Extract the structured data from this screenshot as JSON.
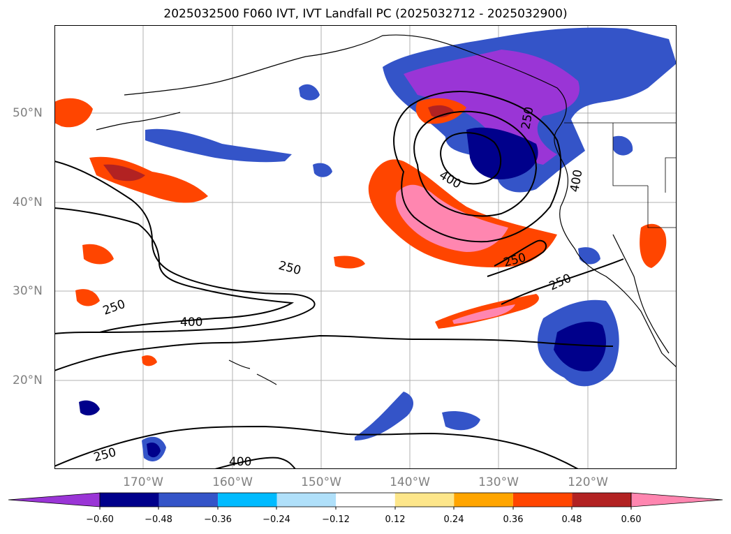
{
  "title": "2025032500 F060 IVT, IVT Landfall PC (2025032712 - 2025032900)",
  "map": {
    "latitude_labels": [
      "50°N",
      "40°N",
      "30°N",
      "20°N"
    ],
    "longitude_labels": [
      "170°W",
      "160°W",
      "150°W",
      "140°W",
      "130°W",
      "120°W"
    ],
    "extent": {
      "lon_min": -180,
      "lon_max": -110,
      "lat_min": 10,
      "lat_max": 60
    },
    "gridlines": true,
    "contour_labels": [
      "250",
      "400",
      "250",
      "400",
      "250",
      "400",
      "250",
      "250",
      "250",
      "400",
      "250"
    ]
  },
  "colorbar": {
    "tick_labels": [
      "−0.60",
      "−0.48",
      "−0.36",
      "−0.24",
      "−0.12",
      "0.12",
      "0.24",
      "0.36",
      "0.48",
      "0.60"
    ],
    "colors": [
      "#9a35d6",
      "#00008b",
      "#3454c8",
      "#00bbff",
      "#b0e0fa",
      "#ffffff",
      "#fde68a",
      "#ffa500",
      "#ff4500",
      "#b22222",
      "#ff86b0"
    ]
  }
}
